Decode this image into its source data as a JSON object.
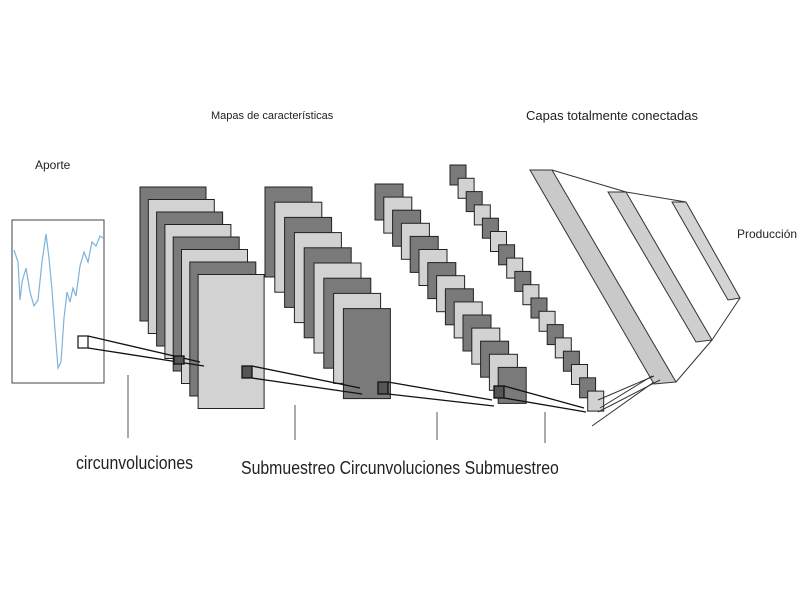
{
  "labels": {
    "input": "Aporte",
    "feature_maps": "Mapas de características",
    "fully_connected": "Capas totalmente conectadas",
    "output": "Producción",
    "convolutions_1": "circunvoluciones",
    "bottom_row": "Submuestreo Circunvoluciones Submuestreo"
  },
  "colors": {
    "dark_map": "#7a7a7a",
    "light_map": "#d2d2d2",
    "outline": "#222222",
    "signal": "#7fb3d8",
    "fc_plane": "#c9c9c9"
  }
}
